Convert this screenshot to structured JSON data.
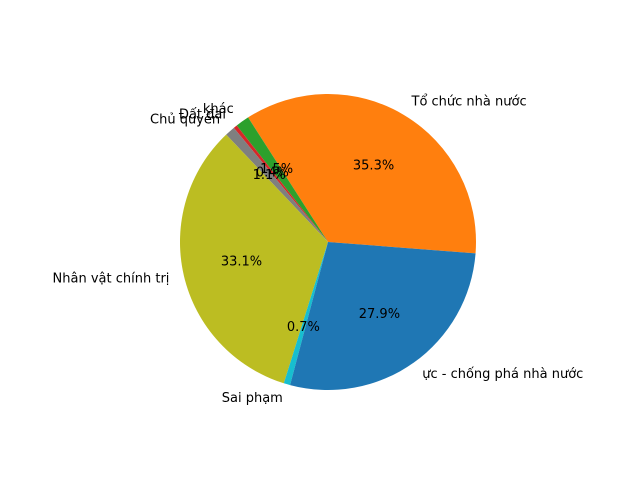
{
  "chart_data": {
    "type": "pie",
    "title": "",
    "slices": [
      {
        "label": "Tổ chức nhà nước",
        "value": 35.3,
        "pct_label": "35.3%",
        "color": "#ff7f0e"
      },
      {
        "label": "khác",
        "value": 1.5,
        "pct_label": "1.5%",
        "color": "#2ca02c"
      },
      {
        "label": "Đất đai",
        "value": 0.4,
        "pct_label": "0.4%",
        "color": "#d62728"
      },
      {
        "label": "Chủ quyền",
        "value": 1.1,
        "pct_label": "1.1%",
        "color": "#7f7f7f"
      },
      {
        "label": "Nhân vật chính trị",
        "value": 33.1,
        "pct_label": "33.1%",
        "color": "#bcbd22"
      },
      {
        "label": "Sai phạm",
        "value": 0.7,
        "pct_label": "0.7%",
        "color": "#17becf"
      },
      {
        "label": "Chống phá nhà nước - chống phá nhà nước",
        "display_label": "ực - chống phá nhà nước",
        "value": 27.9,
        "pct_label": "27.9%",
        "color": "#1f77b4"
      }
    ],
    "start_slice": "Tổ chức nhà nước",
    "direction": "counterclockwise",
    "legend": "none"
  }
}
